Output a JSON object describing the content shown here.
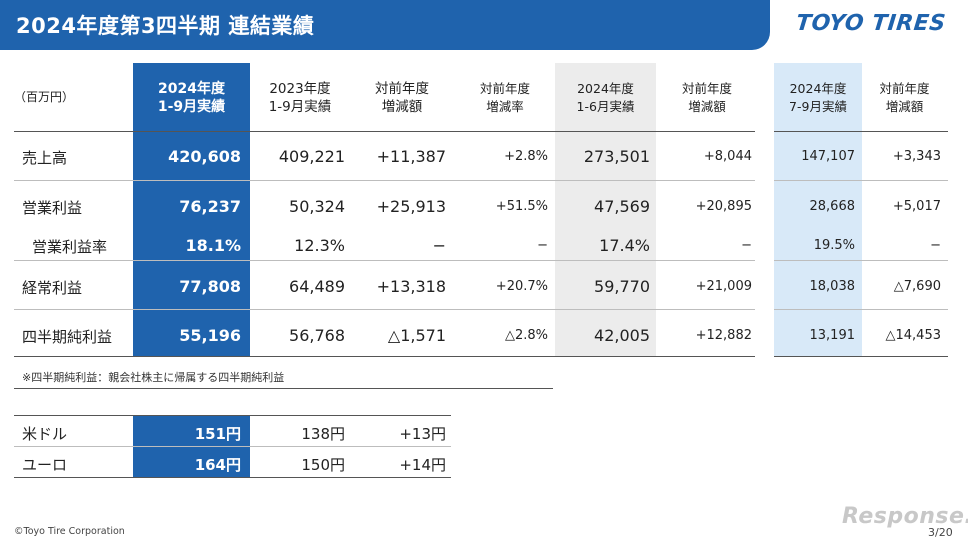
{
  "title": "2024年度第3四半期 連結業績",
  "logo": "TOYO TIRES",
  "unit_label": "（百万円）",
  "headers": {
    "c1": [
      "2024年度",
      "1-9月実績"
    ],
    "c2": [
      "2023年度",
      "1-9月実績"
    ],
    "c3": [
      "対前年度",
      "増減額"
    ],
    "c4": [
      "対前年度",
      "増減率"
    ],
    "c5": [
      "2024年度",
      "1-6月実績"
    ],
    "c6": [
      "対前年度",
      "増減額"
    ],
    "c7": [
      "2024年度",
      "7-9月実績"
    ],
    "c8": [
      "対前年度",
      "増減額"
    ]
  },
  "rows": [
    {
      "label": "売上高",
      "c1": "420,608",
      "c2": "409,221",
      "c3": "+11,387",
      "c4": "+2.8%",
      "c5": "273,501",
      "c6": "+8,044",
      "c7": "147,107",
      "c8": "+3,343"
    },
    {
      "label": "営業利益",
      "c1": "76,237",
      "c2": "50,324",
      "c3": "+25,913",
      "c4": "+51.5%",
      "c5": "47,569",
      "c6": "+20,895",
      "c7": "28,668",
      "c8": "+5,017"
    },
    {
      "label": "営業利益率",
      "c1": "18.1%",
      "c2": "12.3%",
      "c3": "−",
      "c4": "−",
      "c5": "17.4%",
      "c6": "−",
      "c7": "19.5%",
      "c8": "−"
    },
    {
      "label": "経常利益",
      "c1": "77,808",
      "c2": "64,489",
      "c3": "+13,318",
      "c4": "+20.7%",
      "c5": "59,770",
      "c6": "+21,009",
      "c7": "18,038",
      "c8": "△7,690"
    },
    {
      "label": "四半期純利益",
      "c1": "55,196",
      "c2": "56,768",
      "c3": "△1,571",
      "c4": "△2.8%",
      "c5": "42,005",
      "c6": "+12,882",
      "c7": "13,191",
      "c8": "△14,453"
    }
  ],
  "footnote": "※四半期純利益：親会社株主に帰属する四半期純利益",
  "fx_rows": [
    {
      "label": "米ドル",
      "c1": "151円",
      "c2": "138円",
      "c3": "+13円"
    },
    {
      "label": "ユーロ",
      "c1": "164円",
      "c2": "150円",
      "c3": "+14円"
    }
  ],
  "copyright": "©Toyo Tire Corporation",
  "watermark": "Response.",
  "page": "3/20"
}
